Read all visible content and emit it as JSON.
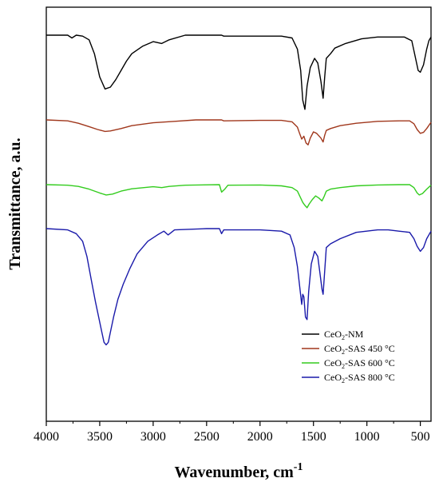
{
  "chart_data": {
    "type": "line",
    "xlabel": "Wavenumber, cm",
    "xlabel_sup": "-1",
    "ylabel": "Transmittance, a.u.",
    "xlim": [
      4000,
      400
    ],
    "x_reversed": true,
    "x_ticks": [
      4000,
      3500,
      3000,
      2500,
      2000,
      1500,
      1000,
      500
    ],
    "y_ticks": [],
    "grid": false,
    "legend_position": "bottom-right",
    "series": [
      {
        "name": "CeO₂-NM",
        "legend_parts": [
          "CeO",
          "2",
          "-NM"
        ],
        "color": "#000000",
        "points": [
          [
            4000,
            1.0
          ],
          [
            3800,
            1.0
          ],
          [
            3760,
            0.97
          ],
          [
            3720,
            1.0
          ],
          [
            3660,
            0.99
          ],
          [
            3600,
            0.95
          ],
          [
            3550,
            0.8
          ],
          [
            3500,
            0.55
          ],
          [
            3450,
            0.42
          ],
          [
            3400,
            0.44
          ],
          [
            3350,
            0.52
          ],
          [
            3300,
            0.62
          ],
          [
            3250,
            0.72
          ],
          [
            3200,
            0.8
          ],
          [
            3100,
            0.88
          ],
          [
            3000,
            0.93
          ],
          [
            2920,
            0.91
          ],
          [
            2850,
            0.95
          ],
          [
            2700,
            1.0
          ],
          [
            2360,
            1.0
          ],
          [
            2340,
            0.99
          ],
          [
            2000,
            0.99
          ],
          [
            1800,
            0.99
          ],
          [
            1700,
            0.97
          ],
          [
            1650,
            0.85
          ],
          [
            1620,
            0.62
          ],
          [
            1600,
            0.3
          ],
          [
            1580,
            0.2
          ],
          [
            1560,
            0.45
          ],
          [
            1530,
            0.65
          ],
          [
            1490,
            0.75
          ],
          [
            1460,
            0.7
          ],
          [
            1430,
            0.5
          ],
          [
            1410,
            0.32
          ],
          [
            1395,
            0.55
          ],
          [
            1380,
            0.75
          ],
          [
            1340,
            0.8
          ],
          [
            1300,
            0.86
          ],
          [
            1200,
            0.91
          ],
          [
            1050,
            0.96
          ],
          [
            900,
            0.98
          ],
          [
            750,
            0.98
          ],
          [
            650,
            0.98
          ],
          [
            580,
            0.94
          ],
          [
            550,
            0.78
          ],
          [
            520,
            0.62
          ],
          [
            500,
            0.6
          ],
          [
            470,
            0.68
          ],
          [
            440,
            0.85
          ],
          [
            420,
            0.94
          ],
          [
            400,
            0.98
          ]
        ]
      },
      {
        "name": "CeO₂-SAS 450 °C",
        "legend_parts": [
          "CeO",
          "2",
          "-SAS 450 °C"
        ],
        "color": "#a0371c",
        "points": [
          [
            4000,
            1.0
          ],
          [
            3800,
            0.98
          ],
          [
            3700,
            0.93
          ],
          [
            3600,
            0.86
          ],
          [
            3520,
            0.8
          ],
          [
            3450,
            0.76
          ],
          [
            3400,
            0.77
          ],
          [
            3300,
            0.82
          ],
          [
            3200,
            0.88
          ],
          [
            3000,
            0.94
          ],
          [
            2800,
            0.97
          ],
          [
            2600,
            1.0
          ],
          [
            2360,
            1.0
          ],
          [
            2340,
            0.98
          ],
          [
            2000,
            0.99
          ],
          [
            1800,
            0.99
          ],
          [
            1700,
            0.96
          ],
          [
            1650,
            0.85
          ],
          [
            1630,
            0.72
          ],
          [
            1610,
            0.6
          ],
          [
            1590,
            0.66
          ],
          [
            1570,
            0.52
          ],
          [
            1550,
            0.48
          ],
          [
            1530,
            0.62
          ],
          [
            1500,
            0.75
          ],
          [
            1470,
            0.72
          ],
          [
            1430,
            0.62
          ],
          [
            1410,
            0.54
          ],
          [
            1395,
            0.68
          ],
          [
            1380,
            0.78
          ],
          [
            1340,
            0.82
          ],
          [
            1250,
            0.88
          ],
          [
            1100,
            0.93
          ],
          [
            900,
            0.97
          ],
          [
            700,
            0.98
          ],
          [
            600,
            0.98
          ],
          [
            560,
            0.92
          ],
          [
            530,
            0.8
          ],
          [
            500,
            0.72
          ],
          [
            470,
            0.74
          ],
          [
            440,
            0.82
          ],
          [
            400,
            0.95
          ]
        ]
      },
      {
        "name": "CeO₂-SAS 600 °C",
        "legend_parts": [
          "CeO",
          "2",
          "-SAS 600 °C"
        ],
        "color": "#33cc1e",
        "points": [
          [
            4000,
            1.0
          ],
          [
            3800,
            0.98
          ],
          [
            3700,
            0.94
          ],
          [
            3600,
            0.85
          ],
          [
            3500,
            0.72
          ],
          [
            3440,
            0.65
          ],
          [
            3380,
            0.68
          ],
          [
            3300,
            0.78
          ],
          [
            3200,
            0.86
          ],
          [
            3000,
            0.93
          ],
          [
            2920,
            0.9
          ],
          [
            2850,
            0.94
          ],
          [
            2700,
            0.98
          ],
          [
            2380,
            1.0
          ],
          [
            2360,
            0.75
          ],
          [
            2330,
            0.85
          ],
          [
            2300,
            0.98
          ],
          [
            2000,
            0.99
          ],
          [
            1800,
            0.96
          ],
          [
            1700,
            0.9
          ],
          [
            1650,
            0.78
          ],
          [
            1620,
            0.55
          ],
          [
            1600,
            0.4
          ],
          [
            1580,
            0.3
          ],
          [
            1560,
            0.22
          ],
          [
            1540,
            0.35
          ],
          [
            1510,
            0.5
          ],
          [
            1480,
            0.62
          ],
          [
            1450,
            0.55
          ],
          [
            1420,
            0.45
          ],
          [
            1400,
            0.6
          ],
          [
            1380,
            0.78
          ],
          [
            1340,
            0.85
          ],
          [
            1250,
            0.9
          ],
          [
            1100,
            0.96
          ],
          [
            900,
            0.99
          ],
          [
            700,
            1.0
          ],
          [
            600,
            1.0
          ],
          [
            560,
            0.9
          ],
          [
            530,
            0.72
          ],
          [
            510,
            0.65
          ],
          [
            480,
            0.7
          ],
          [
            440,
            0.85
          ],
          [
            400,
            0.98
          ]
        ]
      },
      {
        "name": "CeO₂-SAS 800 °C",
        "legend_parts": [
          "CeO",
          "2",
          "-SAS 800 °C"
        ],
        "color": "#1a1aaa",
        "points": [
          [
            4000,
            1.0
          ],
          [
            3800,
            0.99
          ],
          [
            3720,
            0.96
          ],
          [
            3660,
            0.9
          ],
          [
            3620,
            0.78
          ],
          [
            3580,
            0.6
          ],
          [
            3540,
            0.42
          ],
          [
            3510,
            0.3
          ],
          [
            3480,
            0.18
          ],
          [
            3460,
            0.1
          ],
          [
            3440,
            0.08
          ],
          [
            3420,
            0.1
          ],
          [
            3400,
            0.18
          ],
          [
            3370,
            0.3
          ],
          [
            3330,
            0.44
          ],
          [
            3280,
            0.56
          ],
          [
            3220,
            0.68
          ],
          [
            3150,
            0.8
          ],
          [
            3050,
            0.9
          ],
          [
            2960,
            0.95
          ],
          [
            2900,
            0.98
          ],
          [
            2860,
            0.95
          ],
          [
            2800,
            0.99
          ],
          [
            2500,
            1.0
          ],
          [
            2380,
            1.0
          ],
          [
            2360,
            0.96
          ],
          [
            2340,
            0.99
          ],
          [
            2000,
            0.99
          ],
          [
            1800,
            0.98
          ],
          [
            1720,
            0.95
          ],
          [
            1680,
            0.85
          ],
          [
            1650,
            0.7
          ],
          [
            1630,
            0.55
          ],
          [
            1610,
            0.4
          ],
          [
            1600,
            0.48
          ],
          [
            1590,
            0.46
          ],
          [
            1575,
            0.3
          ],
          [
            1560,
            0.28
          ],
          [
            1545,
            0.5
          ],
          [
            1520,
            0.72
          ],
          [
            1490,
            0.82
          ],
          [
            1460,
            0.78
          ],
          [
            1440,
            0.65
          ],
          [
            1420,
            0.52
          ],
          [
            1410,
            0.48
          ],
          [
            1400,
            0.6
          ],
          [
            1380,
            0.85
          ],
          [
            1340,
            0.88
          ],
          [
            1250,
            0.92
          ],
          [
            1100,
            0.97
          ],
          [
            900,
            0.99
          ],
          [
            800,
            0.99
          ],
          [
            700,
            0.98
          ],
          [
            600,
            0.97
          ],
          [
            560,
            0.92
          ],
          [
            530,
            0.86
          ],
          [
            500,
            0.82
          ],
          [
            470,
            0.85
          ],
          [
            440,
            0.92
          ],
          [
            400,
            0.98
          ]
        ]
      }
    ]
  }
}
